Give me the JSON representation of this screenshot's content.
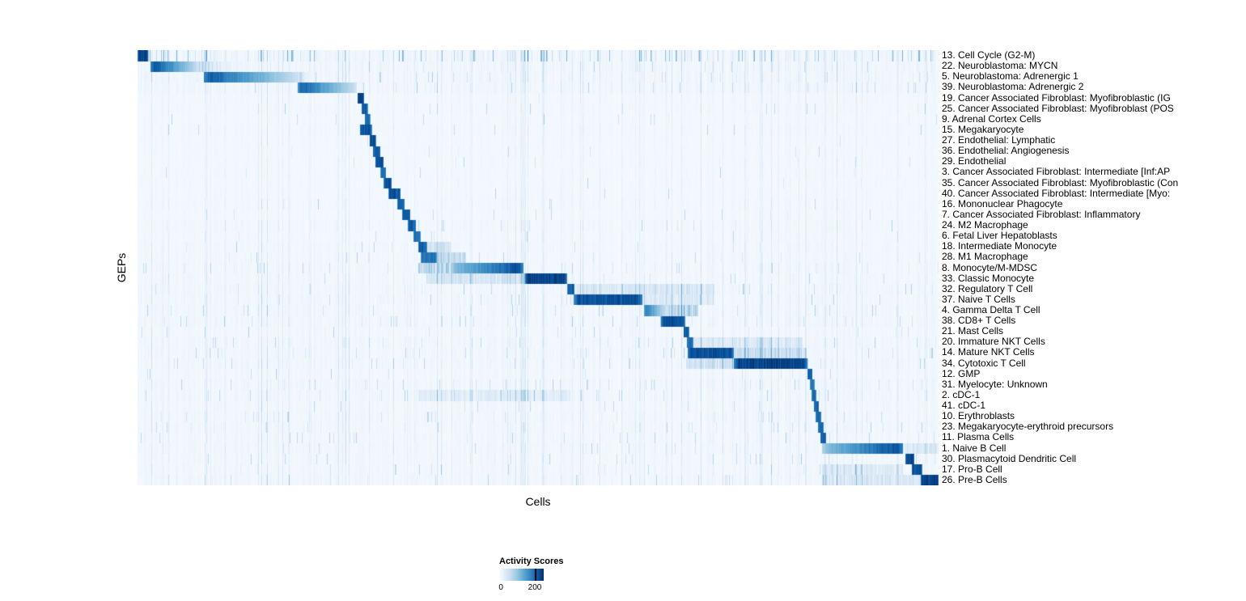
{
  "chart_data": {
    "type": "heatmap",
    "xlabel": "Cells",
    "ylabel": "GEPs",
    "colormap": {
      "name": "Blues",
      "low": "#f7fbff",
      "high": "#08306b"
    },
    "legend": {
      "title": "Activity Scores",
      "min_label": "0",
      "max_label": "200",
      "tick_fraction": 0.8,
      "position": "bottom"
    },
    "value_range": [
      0,
      250
    ],
    "rows": [
      {
        "label": "13. Cell Cycle (G2-M)",
        "block": [
          0.0,
          0.013
        ],
        "peak": 1.0,
        "noise": 1.3,
        "scatter": 0.6,
        "scatter_amp": 0.5
      },
      {
        "label": "22. Neuroblastoma: MYCN",
        "block": [
          0.016,
          0.075
        ],
        "peak": 1.0,
        "fade": "right",
        "tail": 0.07,
        "noise": 1.1,
        "scatter": 0.2
      },
      {
        "label": "5. Neuroblastoma: Adrenergic 1",
        "block": [
          0.082,
          0.2
        ],
        "peak": 0.95,
        "fade": "right",
        "tail": 0.02,
        "noise": 1.1,
        "scatter": 0.2
      },
      {
        "label": "39. Neuroblastoma: Adrenergic 2",
        "block": [
          0.2,
          0.273
        ],
        "peak": 0.92,
        "fade": "right",
        "noise": 1.0,
        "scatter": 0.15
      },
      {
        "label": "19. Cancer Associated Fibroblast: Myofibroblastic (IG",
        "block": [
          0.274,
          0.282
        ],
        "peak": 1.0,
        "noise": 0.6,
        "scatter": 0.05
      },
      {
        "label": "25. Cancer Associated Fibroblast: Myofibroblast (POS",
        "block": [
          0.279,
          0.287
        ],
        "peak": 0.9,
        "noise": 0.6,
        "scatter": 0.05
      },
      {
        "label": "9. Adrenal Cortex Cells",
        "block": [
          0.283,
          0.29
        ],
        "peak": 0.85,
        "noise": 0.5,
        "scatter": 0.04
      },
      {
        "label": "15. Megakaryocyte",
        "block": [
          0.277,
          0.292
        ],
        "peak": 0.92,
        "noise": 0.6,
        "scatter": 0.05
      },
      {
        "label": "27. Endothelial: Lymphatic",
        "block": [
          0.289,
          0.297
        ],
        "peak": 0.95,
        "noise": 0.5,
        "scatter": 0.04
      },
      {
        "label": "36. Endothelial: Angiogenesis",
        "block": [
          0.293,
          0.303
        ],
        "peak": 0.9,
        "noise": 0.5,
        "scatter": 0.04
      },
      {
        "label": "29. Endothelial",
        "block": [
          0.296,
          0.307
        ],
        "peak": 0.95,
        "noise": 0.5,
        "scatter": 0.04
      },
      {
        "label": "3. Cancer Associated Fibroblast: Intermediate [Inf:AP",
        "block": [
          0.303,
          0.31
        ],
        "peak": 0.85,
        "noise": 0.5,
        "scatter": 0.04
      },
      {
        "label": "35. Cancer Associated Fibroblast: Myofibroblastic (Con",
        "block": [
          0.307,
          0.317
        ],
        "peak": 0.95,
        "noise": 0.5,
        "scatter": 0.04
      },
      {
        "label": "40. Cancer Associated Fibroblast: Intermediate [Myo:",
        "block": [
          0.313,
          0.328
        ],
        "peak": 0.95,
        "noise": 0.5,
        "scatter": 0.05
      },
      {
        "label": "16. Mononuclear Phagocyte",
        "block": [
          0.324,
          0.333
        ],
        "peak": 0.88,
        "noise": 0.6,
        "scatter": 0.06
      },
      {
        "label": "7. Cancer Associated Fibroblast: Inflammatory",
        "block": [
          0.33,
          0.34
        ],
        "peak": 0.9,
        "noise": 0.5,
        "scatter": 0.05
      },
      {
        "label": "24. M2 Macrophage",
        "block": [
          0.337,
          0.347
        ],
        "peak": 0.9,
        "noise": 0.7,
        "scatter": 0.08
      },
      {
        "label": "6. Fetal Liver Hepatoblasts",
        "block": [
          0.344,
          0.353
        ],
        "peak": 0.85,
        "noise": 0.6,
        "scatter": 0.05
      },
      {
        "label": "18. Intermediate Monocyte",
        "block": [
          0.35,
          0.361
        ],
        "peak": 0.9,
        "noise": 0.7,
        "scatter": 0.08,
        "bands": [
          [
            0.361,
            0.39,
            0.15
          ]
        ]
      },
      {
        "label": "28. M1 Macrophage",
        "block": [
          0.353,
          0.373
        ],
        "peak": 0.82,
        "noise": 0.7,
        "scatter": 0.08,
        "bands": [
          [
            0.373,
            0.41,
            0.22
          ]
        ]
      },
      {
        "label": "8. Monocyte/M-MDSC",
        "block": [
          0.39,
          0.481
        ],
        "peak": 1.0,
        "fade": "left",
        "noise": 0.8,
        "scatter": 0.12,
        "bands": [
          [
            0.35,
            0.39,
            0.25
          ]
        ]
      },
      {
        "label": "33. Classic Monocyte",
        "block": [
          0.483,
          0.536
        ],
        "peak": 1.0,
        "noise": 0.8,
        "scatter": 0.1,
        "bands": [
          [
            0.36,
            0.483,
            0.12
          ]
        ]
      },
      {
        "label": "32. Regulatory T Cell",
        "block": [
          0.536,
          0.545
        ],
        "peak": 0.9,
        "noise": 0.9,
        "scatter": 0.15,
        "bands": [
          [
            0.545,
            0.72,
            0.1
          ]
        ]
      },
      {
        "label": "37. Naive T Cells",
        "block": [
          0.544,
          0.63
        ],
        "peak": 0.95,
        "noise": 0.9,
        "scatter": 0.15,
        "bands": [
          [
            0.63,
            0.72,
            0.08
          ]
        ]
      },
      {
        "label": "4. Gamma Delta T Cell",
        "block": [
          0.632,
          0.661
        ],
        "peak": 0.8,
        "fade": "right",
        "noise": 0.9,
        "scatter": 0.15,
        "bands": [
          [
            0.661,
            0.7,
            0.25
          ]
        ]
      },
      {
        "label": "38. CD8+ T Cells",
        "block": [
          0.653,
          0.683
        ],
        "peak": 0.95,
        "noise": 0.9,
        "scatter": 0.15
      },
      {
        "label": "21. Mast Cells",
        "block": [
          0.681,
          0.688
        ],
        "peak": 0.9,
        "noise": 0.7,
        "scatter": 0.1
      },
      {
        "label": "20. Immature NKT Cells",
        "block": [
          0.685,
          0.693
        ],
        "peak": 0.85,
        "noise": 0.9,
        "scatter": 0.15,
        "bands": [
          [
            0.693,
            0.83,
            0.08
          ]
        ]
      },
      {
        "label": "14. Mature NKT Cells",
        "block": [
          0.686,
          0.744
        ],
        "peak": 0.95,
        "noise": 0.9,
        "scatter": 0.15,
        "bands": [
          [
            0.744,
            0.835,
            0.18
          ]
        ]
      },
      {
        "label": "34. Cytotoxic T Cell",
        "block": [
          0.744,
          0.836
        ],
        "peak": 1.0,
        "noise": 0.9,
        "scatter": 0.15,
        "bands": [
          [
            0.684,
            0.744,
            0.15
          ]
        ]
      },
      {
        "label": "12. GMP",
        "block": [
          0.836,
          0.842
        ],
        "peak": 0.9,
        "noise": 0.7,
        "scatter": 0.1
      },
      {
        "label": "31. Myelocyte: Unknown",
        "block": [
          0.839,
          0.845
        ],
        "peak": 0.8,
        "noise": 0.9,
        "scatter": 0.18
      },
      {
        "label": "2. cDC-1",
        "block": [
          0.841,
          0.847
        ],
        "peak": 0.85,
        "noise": 0.9,
        "scatter": 0.15,
        "bands": [
          [
            0.35,
            0.54,
            0.06
          ]
        ]
      },
      {
        "label": "41. cDC-1",
        "block": [
          0.844,
          0.85
        ],
        "peak": 0.9,
        "noise": 0.8,
        "scatter": 0.12
      },
      {
        "label": "10. Erythroblasts",
        "block": [
          0.846,
          0.853
        ],
        "peak": 0.9,
        "noise": 0.9,
        "scatter": 0.18
      },
      {
        "label": "23. Megakaryocyte-erythroid precursors",
        "block": [
          0.849,
          0.856
        ],
        "peak": 0.85,
        "noise": 0.9,
        "scatter": 0.18
      },
      {
        "label": "11. Plasma Cells",
        "block": [
          0.852,
          0.859
        ],
        "peak": 0.9,
        "noise": 0.8,
        "scatter": 0.12
      },
      {
        "label": "1. Naive B Cell",
        "block": [
          0.854,
          0.955
        ],
        "peak": 1.0,
        "fade": "left",
        "noise": 0.9,
        "scatter": 0.12,
        "bands": [
          [
            0.955,
            1.0,
            0.1
          ]
        ]
      },
      {
        "label": "30. Plasmacytoid Dendritic Cell",
        "block": [
          0.958,
          0.969
        ],
        "peak": 1.0,
        "noise": 0.8,
        "scatter": 0.12
      },
      {
        "label": "17. Pro-B Cell",
        "block": [
          0.966,
          0.979
        ],
        "peak": 0.95,
        "noise": 0.8,
        "scatter": 0.12,
        "bands": [
          [
            0.854,
            0.955,
            0.08
          ]
        ]
      },
      {
        "label": "26. Pre-B Cells",
        "block": [
          0.977,
          1.0
        ],
        "peak": 1.0,
        "noise": 0.9,
        "scatter": 0.15,
        "bands": [
          [
            0.854,
            0.977,
            0.1
          ]
        ]
      }
    ]
  }
}
